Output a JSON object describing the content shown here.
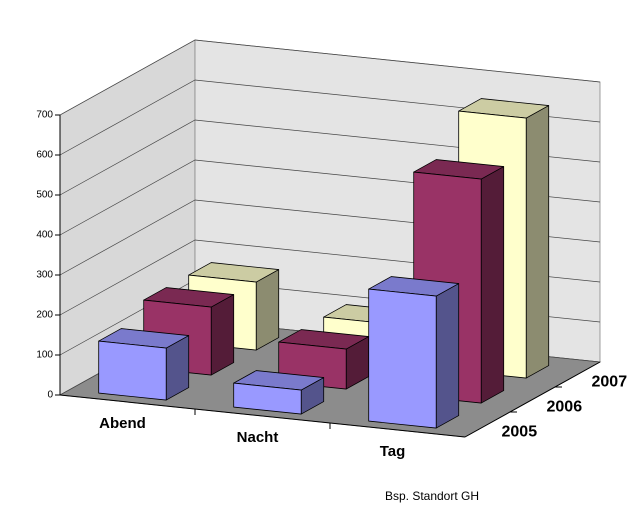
{
  "chart_data": {
    "type": "bar3d",
    "categories": [
      "Abend",
      "Nacht",
      "Tag"
    ],
    "series": [
      {
        "name": "2005",
        "color": "#9999ff",
        "values": [
          130,
          60,
          330
        ]
      },
      {
        "name": "2006",
        "color": "#993366",
        "values": [
          170,
          100,
          560
        ]
      },
      {
        "name": "2007",
        "color": "#ffffcc",
        "values": [
          170,
          100,
          650
        ]
      }
    ],
    "ylim": [
      0,
      700
    ],
    "yticks": [
      0,
      100,
      200,
      300,
      400,
      500,
      600,
      700
    ],
    "grid": true,
    "footnote": "Bsp. Standort GH"
  }
}
